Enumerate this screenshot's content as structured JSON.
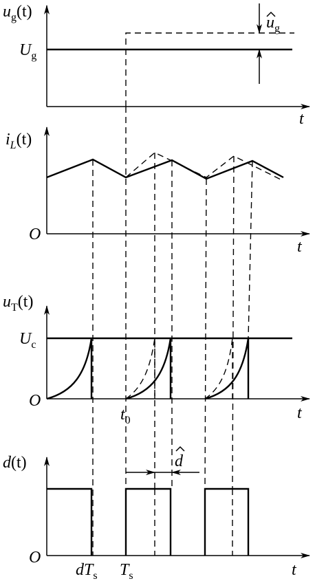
{
  "panels": [
    {
      "label": {
        "main": "u",
        "sub": "g",
        "arg": "(t)"
      },
      "level": {
        "main": "U",
        "sub": "g"
      },
      "delta": {
        "main": "u",
        "sub": "g"
      },
      "axis": "t"
    },
    {
      "label": {
        "main": "i",
        "sub": "L",
        "arg": "(t)"
      },
      "origin": "O",
      "axis": "t"
    },
    {
      "label": {
        "main": "u",
        "sub": "T",
        "arg": "(t)"
      },
      "level": {
        "main": "U",
        "sub": "c"
      },
      "origin": "O",
      "tick": {
        "main": "t",
        "sub": "0"
      },
      "axis": "t"
    },
    {
      "label": {
        "main": "d",
        "arg": "(t)"
      },
      "delta": {
        "main": "d"
      },
      "origin": "O",
      "ticks": [
        {
          "main": "dT",
          "sub": "s"
        },
        {
          "main": "T",
          "sub": "s"
        }
      ],
      "axis": "t"
    }
  ]
}
